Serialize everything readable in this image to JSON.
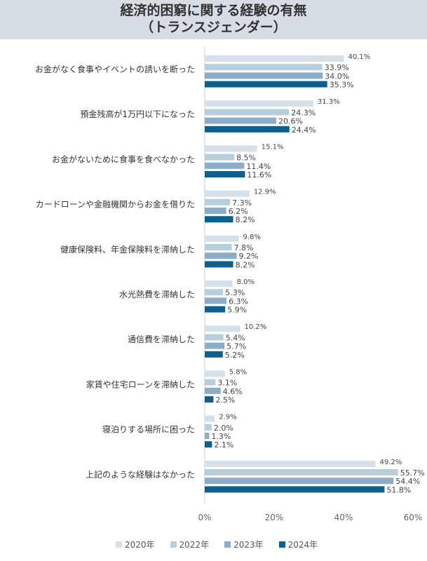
{
  "chart_data": {
    "type": "bar",
    "orientation": "horizontal",
    "title": "経済的困窮に関する経験の有無\n（トランスジェンダー）",
    "title_lines": [
      "経済的困窮に関する経験の有無",
      "（トランスジェンダー）"
    ],
    "categories": [
      "お金がなく食事やイベントの誘いを断った",
      "預金残高が1万円以下になった",
      "お金がないために食事を食べなかった",
      "カードローンや金融機関からお金を借りた",
      "健康保険料、年金保険料を滞納した",
      "水光熱費を滞納した",
      "通信費を滞納した",
      "家賃や住宅ローンを滞納した",
      "寝泊りする場所に困った",
      "上記のような経験はなかった"
    ],
    "series": [
      {
        "name": "2020年",
        "color": "#d6e0e8",
        "values": [
          40.1,
          31.3,
          15.1,
          12.9,
          9.8,
          8.0,
          10.2,
          5.8,
          2.9,
          49.2
        ]
      },
      {
        "name": "2022年",
        "color": "#b7cedc",
        "values": [
          33.9,
          24.3,
          8.5,
          7.3,
          7.8,
          5.3,
          5.4,
          3.1,
          2.0,
          55.7
        ]
      },
      {
        "name": "2023年",
        "color": "#8badca",
        "values": [
          34.0,
          20.6,
          11.4,
          6.2,
          9.2,
          6.3,
          5.7,
          4.6,
          1.3,
          54.4
        ]
      },
      {
        "name": "2024年",
        "color": "#0f5f8e",
        "values": [
          35.3,
          24.4,
          11.6,
          8.2,
          8.2,
          5.9,
          5.2,
          2.5,
          2.1,
          51.8
        ]
      }
    ],
    "xlim": [
      0,
      60
    ],
    "xticks": [
      "0%",
      "20%",
      "40%",
      "60%"
    ],
    "grid": false,
    "legend": "bottom"
  }
}
